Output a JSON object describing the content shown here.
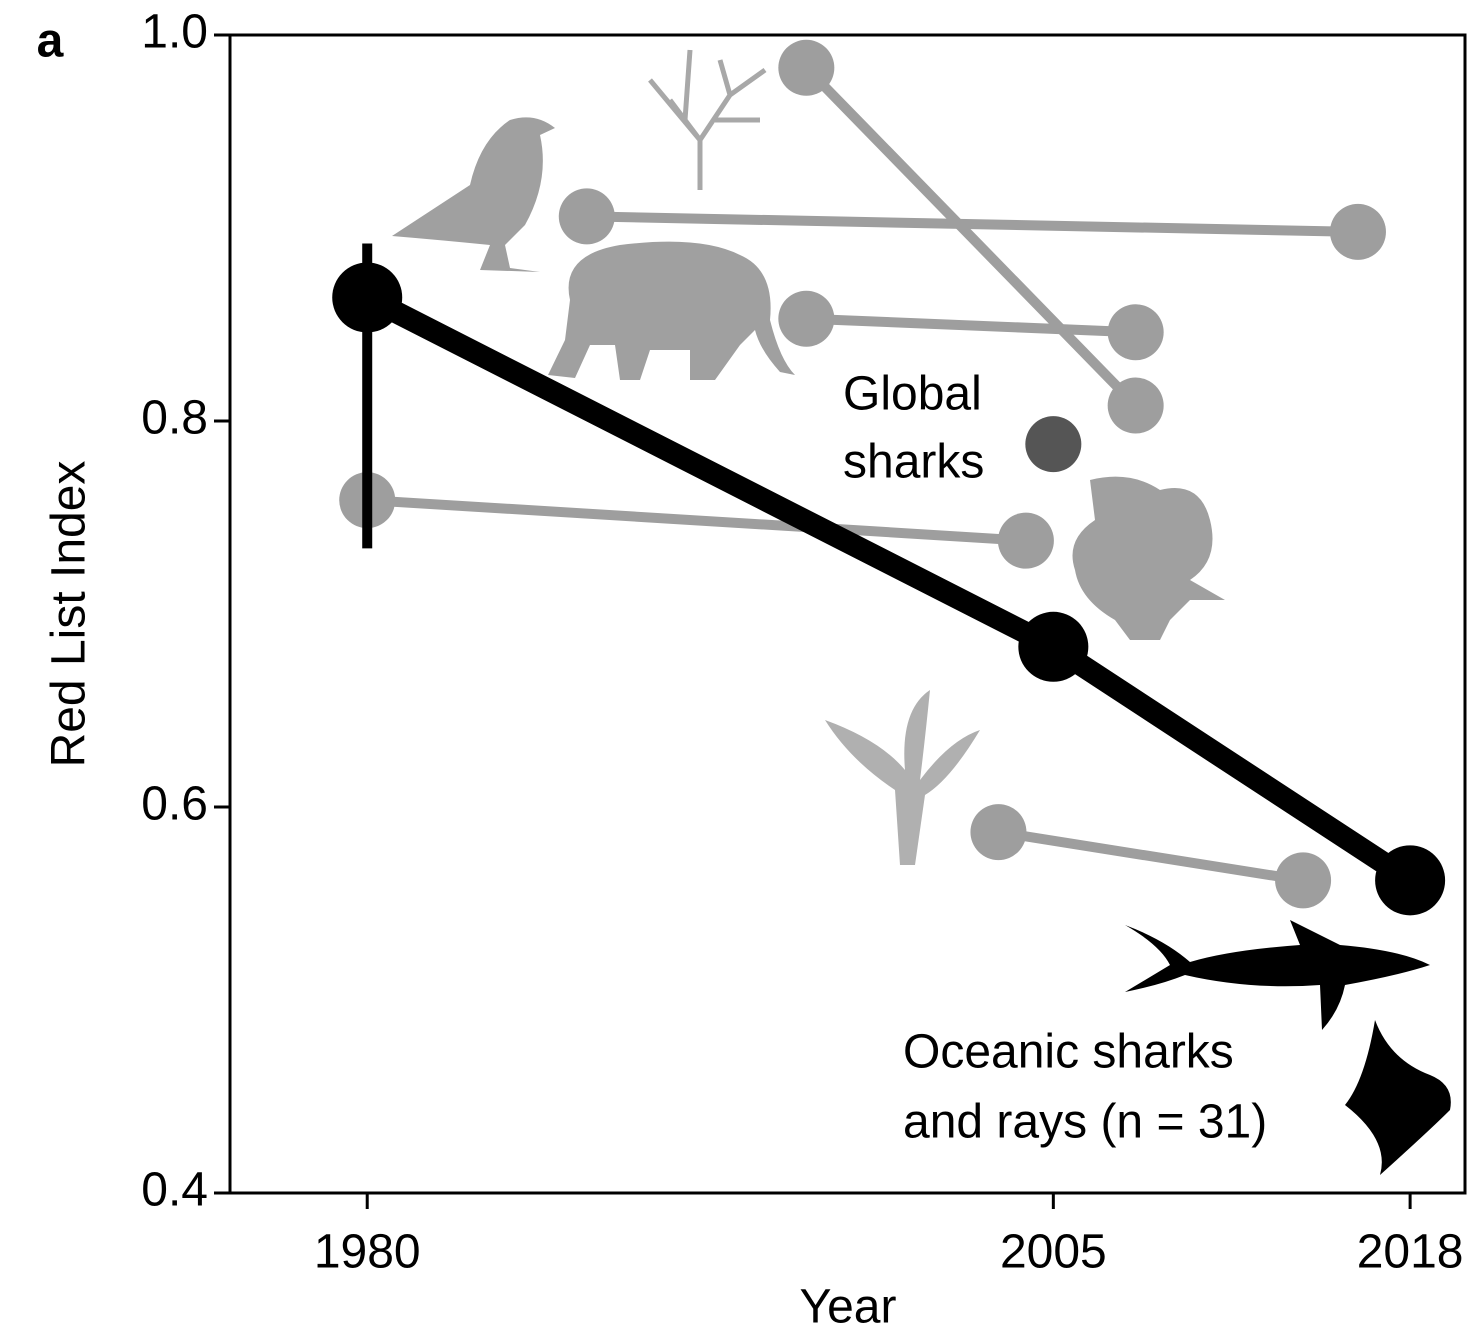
{
  "chart_data": {
    "type": "line",
    "panel_label": "a",
    "x_label": "Year",
    "y_label": "Red List Index",
    "xlim": [
      1975,
      2020
    ],
    "xticks": [
      1980,
      2005,
      2018
    ],
    "ylim": [
      0.4,
      1.0
    ],
    "yticks": [
      0.4,
      0.6,
      0.8,
      {
        "value": 1.0,
        "label": "1.0"
      }
    ],
    "series": [
      {
        "color": "#9e9e9e",
        "x": [
          1996,
          2008
        ],
        "values": [
          0.983,
          0.808
        ]
      },
      {
        "color": "#9e9e9e",
        "x": [
          1988,
          2016.1
        ],
        "values": [
          0.906,
          0.898
        ]
      },
      {
        "color": "#9e9e9e",
        "x": [
          1996,
          2008
        ],
        "values": [
          0.853,
          0.846
        ]
      },
      {
        "color": "#9e9e9e",
        "x": [
          1980,
          2004
        ],
        "values": [
          0.759,
          0.738
        ]
      },
      {
        "color": "#9e9e9e",
        "x": [
          2003,
          2014.1
        ],
        "values": [
          0.587,
          0.562
        ]
      },
      {
        "color": "#555555",
        "x": [
          2005
        ],
        "values": [
          0.788
        ]
      },
      {
        "color": "#000000",
        "x": [
          1980,
          2005,
          2018
        ],
        "values": [
          0.864,
          0.683,
          0.562
        ],
        "error_bounds": [
          [
            0.734,
            0.892
          ],
          null,
          null
        ]
      }
    ],
    "annotations": [
      {
        "color": "#8a8a8a",
        "lines": [
          "Global",
          "sharks"
        ]
      },
      {
        "color": "#000000",
        "lines": [
          "Oceanic sharks",
          "and rays (n = 31)"
        ]
      }
    ]
  }
}
